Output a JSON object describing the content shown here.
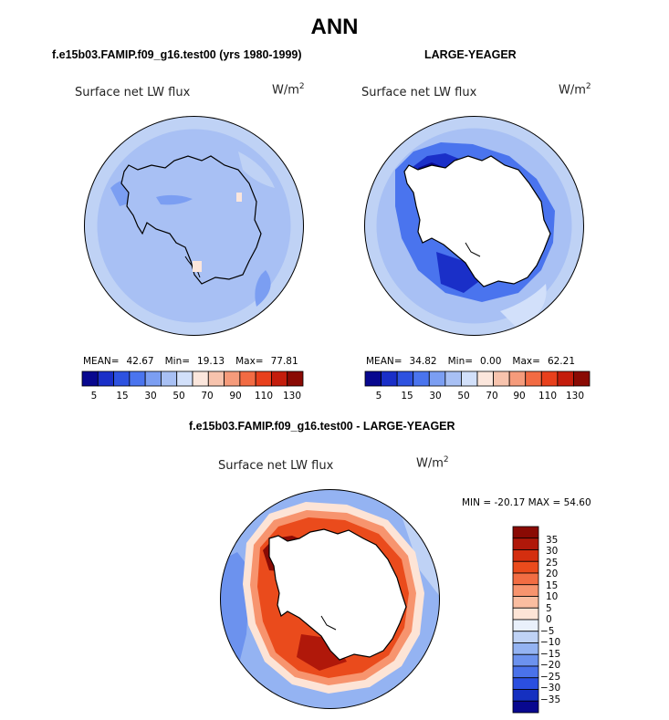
{
  "figure": {
    "title": "ANN"
  },
  "panels": [
    {
      "id": "model",
      "title": "f.e15b03.FAMIP.f09_g16.test00 (yrs 1980-1999)",
      "variable": "Surface net LW flux",
      "units_base": "W/m",
      "units_exp": "2",
      "stats": {
        "mean_label": "MEAN=",
        "mean": "42.67",
        "min_label": "Min=",
        "min": "19.13",
        "max_label": "Max=",
        "max": "77.81"
      },
      "colorbar_ticks": [
        "5",
        "15",
        "30",
        "50",
        "70",
        "90",
        "110",
        "130"
      ]
    },
    {
      "id": "obs",
      "title": "LARGE-YEAGER",
      "variable": "Surface net LW flux",
      "units_base": "W/m",
      "units_exp": "2",
      "stats": {
        "mean_label": "MEAN=",
        "mean": "34.82",
        "min_label": "Min=",
        "min": "0.00",
        "max_label": "Max=",
        "max": "62.21"
      },
      "colorbar_ticks": [
        "5",
        "15",
        "30",
        "50",
        "70",
        "90",
        "110",
        "130"
      ]
    },
    {
      "id": "diff",
      "title": "f.e15b03.FAMIP.f09_g16.test00 - LARGE-YEAGER",
      "variable": "Surface net LW flux",
      "units_base": "W/m",
      "units_exp": "2",
      "minmax_text": "MIN = -20.17 MAX =  54.60",
      "colorbar_ticks": [
        "35",
        "30",
        "25",
        "20",
        "15",
        "10",
        "5",
        "0",
        "−5",
        "−10",
        "−15",
        "−20",
        "−25",
        "−30",
        "−35"
      ]
    }
  ],
  "colors": {
    "abs_scale": [
      "#08088f",
      "#1a2fc8",
      "#2e52e0",
      "#4a74ee",
      "#7b9ef2",
      "#a8c0f4",
      "#d2e0fa",
      "#fbe6dc",
      "#f7c3ad",
      "#f59b7b",
      "#f26b43",
      "#e8401c",
      "#c41d0c",
      "#8a0a04"
    ],
    "diff_scale": [
      "#8a0a04",
      "#b0180a",
      "#d42e0f",
      "#ea4b1c",
      "#f26d43",
      "#f7946e",
      "#fabda0",
      "#fde4d6",
      "#e9f0fb",
      "#bfd2f5",
      "#94b3f2",
      "#6c92ee",
      "#4a72ea",
      "#2b4fe0",
      "#1530c0",
      "#08088f"
    ],
    "land": "#ffffff",
    "coast": "#000000"
  }
}
